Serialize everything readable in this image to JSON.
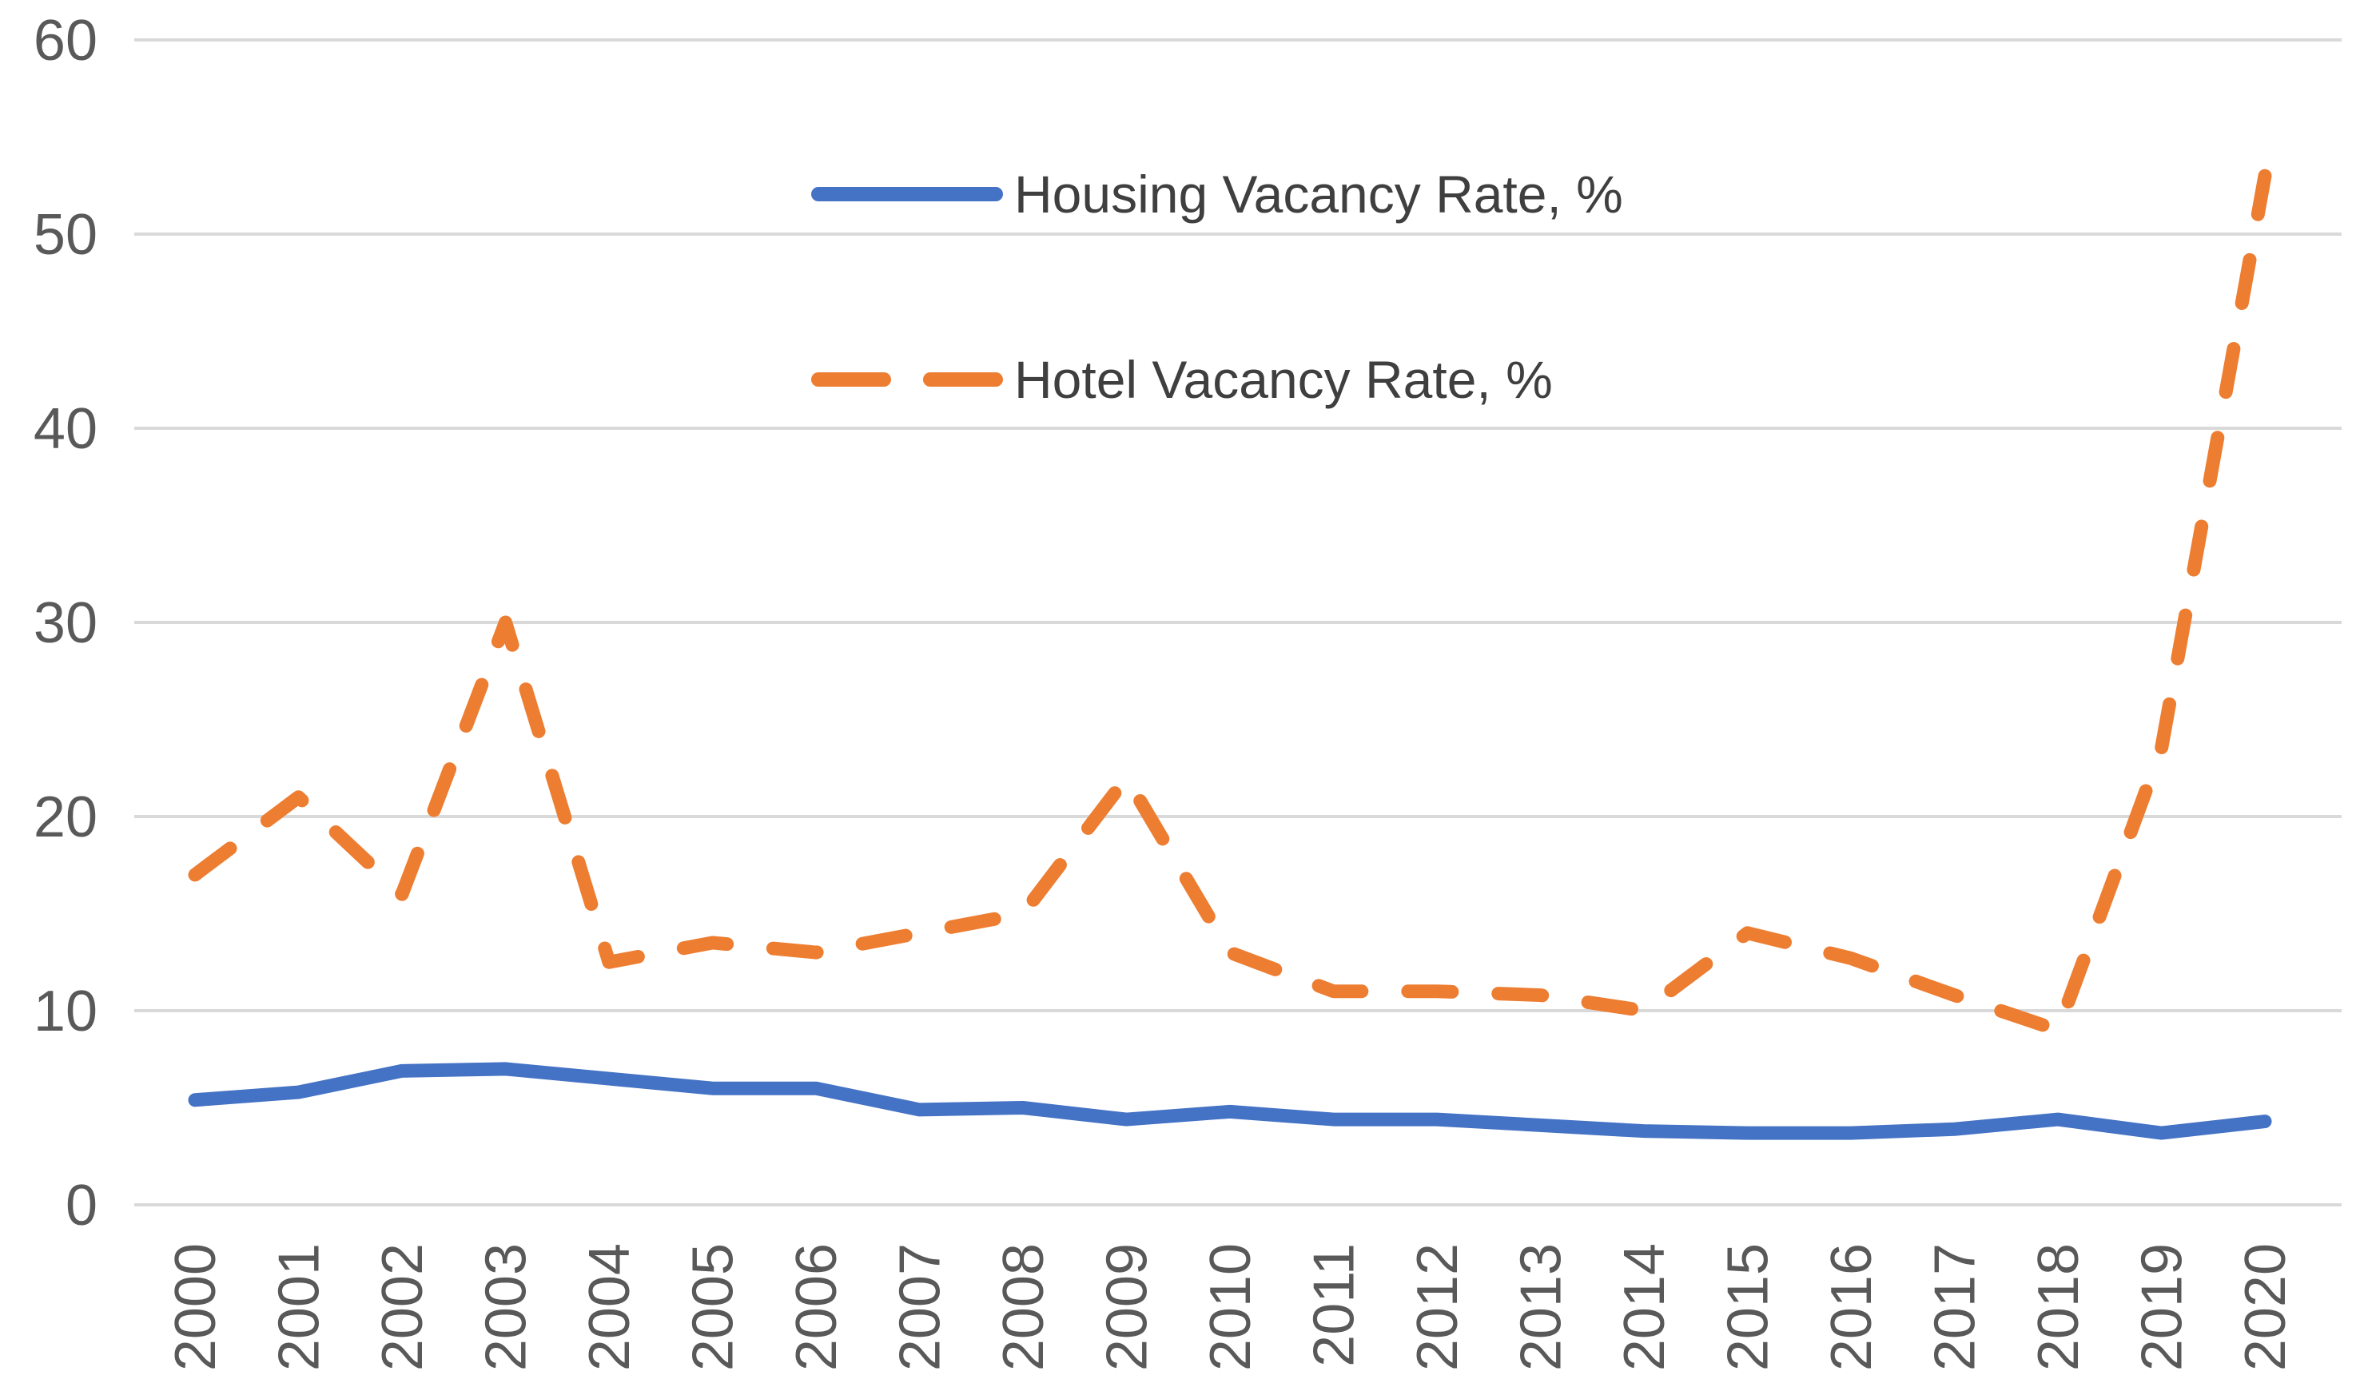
{
  "chart_data": {
    "type": "line",
    "title": "",
    "xlabel": "",
    "ylabel": "",
    "x": [
      2000,
      2001,
      2002,
      2003,
      2004,
      2005,
      2006,
      2007,
      2008,
      2009,
      2010,
      2011,
      2012,
      2013,
      2014,
      2015,
      2016,
      2017,
      2018,
      2019,
      2020
    ],
    "series": [
      {
        "name": "Housing Vacancy Rate, %",
        "style": "solid",
        "color": "#4472C4",
        "values": [
          5.4,
          5.8,
          6.9,
          7.0,
          6.5,
          6.0,
          6.0,
          4.9,
          5.0,
          4.4,
          4.8,
          4.4,
          4.4,
          4.1,
          3.8,
          3.7,
          3.7,
          3.9,
          4.4,
          3.7,
          4.3
        ]
      },
      {
        "name": "Hotel Vacancy Rate, %",
        "style": "dashed",
        "color": "#ED7D31",
        "values": [
          17,
          21,
          16,
          30,
          12.5,
          13.5,
          13,
          14,
          15,
          22,
          13,
          11,
          11,
          10.8,
          10,
          14,
          12.7,
          10.8,
          9,
          23.5,
          53
        ]
      }
    ],
    "ylim": [
      0,
      60
    ],
    "yticks": [
      0,
      10,
      20,
      30,
      40,
      50,
      60
    ],
    "grid": "horizontal",
    "gridline_color": "#D9D9D9",
    "tick_label_color": "#595959",
    "legend_position": "inside-top-center",
    "legend_text_color": "#3f3f3f"
  }
}
